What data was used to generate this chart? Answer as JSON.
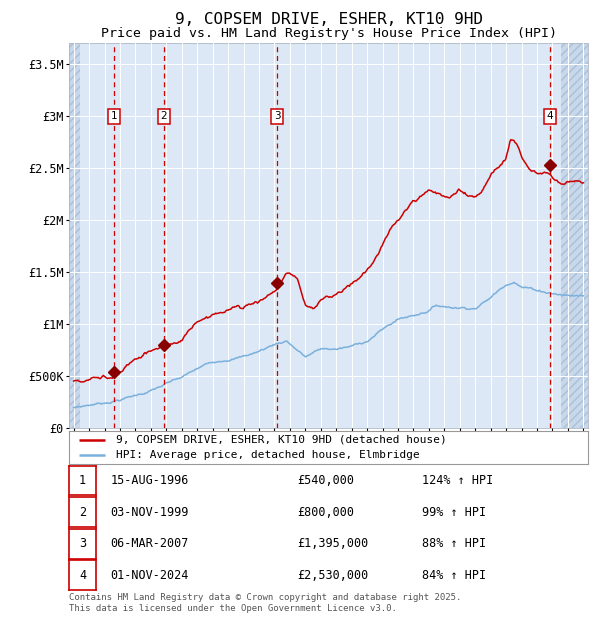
{
  "title": "9, COPSEM DRIVE, ESHER, KT10 9HD",
  "subtitle": "Price paid vs. HM Land Registry's House Price Index (HPI)",
  "title_fontsize": 11.5,
  "subtitle_fontsize": 9.5,
  "background_color": "#ffffff",
  "plot_bg_color": "#dce8f5",
  "grid_color": "#ffffff",
  "red_line_color": "#cc0000",
  "blue_line_color": "#7ab0dc",
  "dashed_line_color": "#cc0000",
  "marker_color": "#880000",
  "ylim": [
    0,
    3700000
  ],
  "yticks": [
    0,
    500000,
    1000000,
    1500000,
    2000000,
    2500000,
    3000000,
    3500000
  ],
  "ytick_labels": [
    "£0",
    "£500K",
    "£1M",
    "£1.5M",
    "£2M",
    "£2.5M",
    "£3M",
    "£3.5M"
  ],
  "xlim_start": 1993.7,
  "xlim_end": 2027.3,
  "hatch_left_end": 1994.42,
  "hatch_right_start": 2025.58,
  "xtick_years": [
    1994,
    1995,
    1996,
    1997,
    1998,
    1999,
    2000,
    2001,
    2002,
    2003,
    2004,
    2005,
    2006,
    2007,
    2008,
    2009,
    2010,
    2011,
    2012,
    2013,
    2014,
    2015,
    2016,
    2017,
    2018,
    2019,
    2020,
    2021,
    2022,
    2023,
    2024,
    2025,
    2026,
    2027
  ],
  "sale_dates": [
    1996.62,
    1999.84,
    2007.18,
    2024.84
  ],
  "sale_prices": [
    540000,
    800000,
    1395000,
    2530000
  ],
  "sale_labels": [
    "1",
    "2",
    "3",
    "4"
  ],
  "legend_entries": [
    "9, COPSEM DRIVE, ESHER, KT10 9HD (detached house)",
    "HPI: Average price, detached house, Elmbridge"
  ],
  "table_rows": [
    {
      "num": "1",
      "date": "15-AUG-1996",
      "price": "£540,000",
      "hpi": "124% ↑ HPI"
    },
    {
      "num": "2",
      "date": "03-NOV-1999",
      "price": "£800,000",
      "hpi": "99% ↑ HPI"
    },
    {
      "num": "3",
      "date": "06-MAR-2007",
      "price": "£1,395,000",
      "hpi": "88% ↑ HPI"
    },
    {
      "num": "4",
      "date": "01-NOV-2024",
      "price": "£2,530,000",
      "hpi": "84% ↑ HPI"
    }
  ],
  "footnote": "Contains HM Land Registry data © Crown copyright and database right 2025.\nThis data is licensed under the Open Government Licence v3.0."
}
